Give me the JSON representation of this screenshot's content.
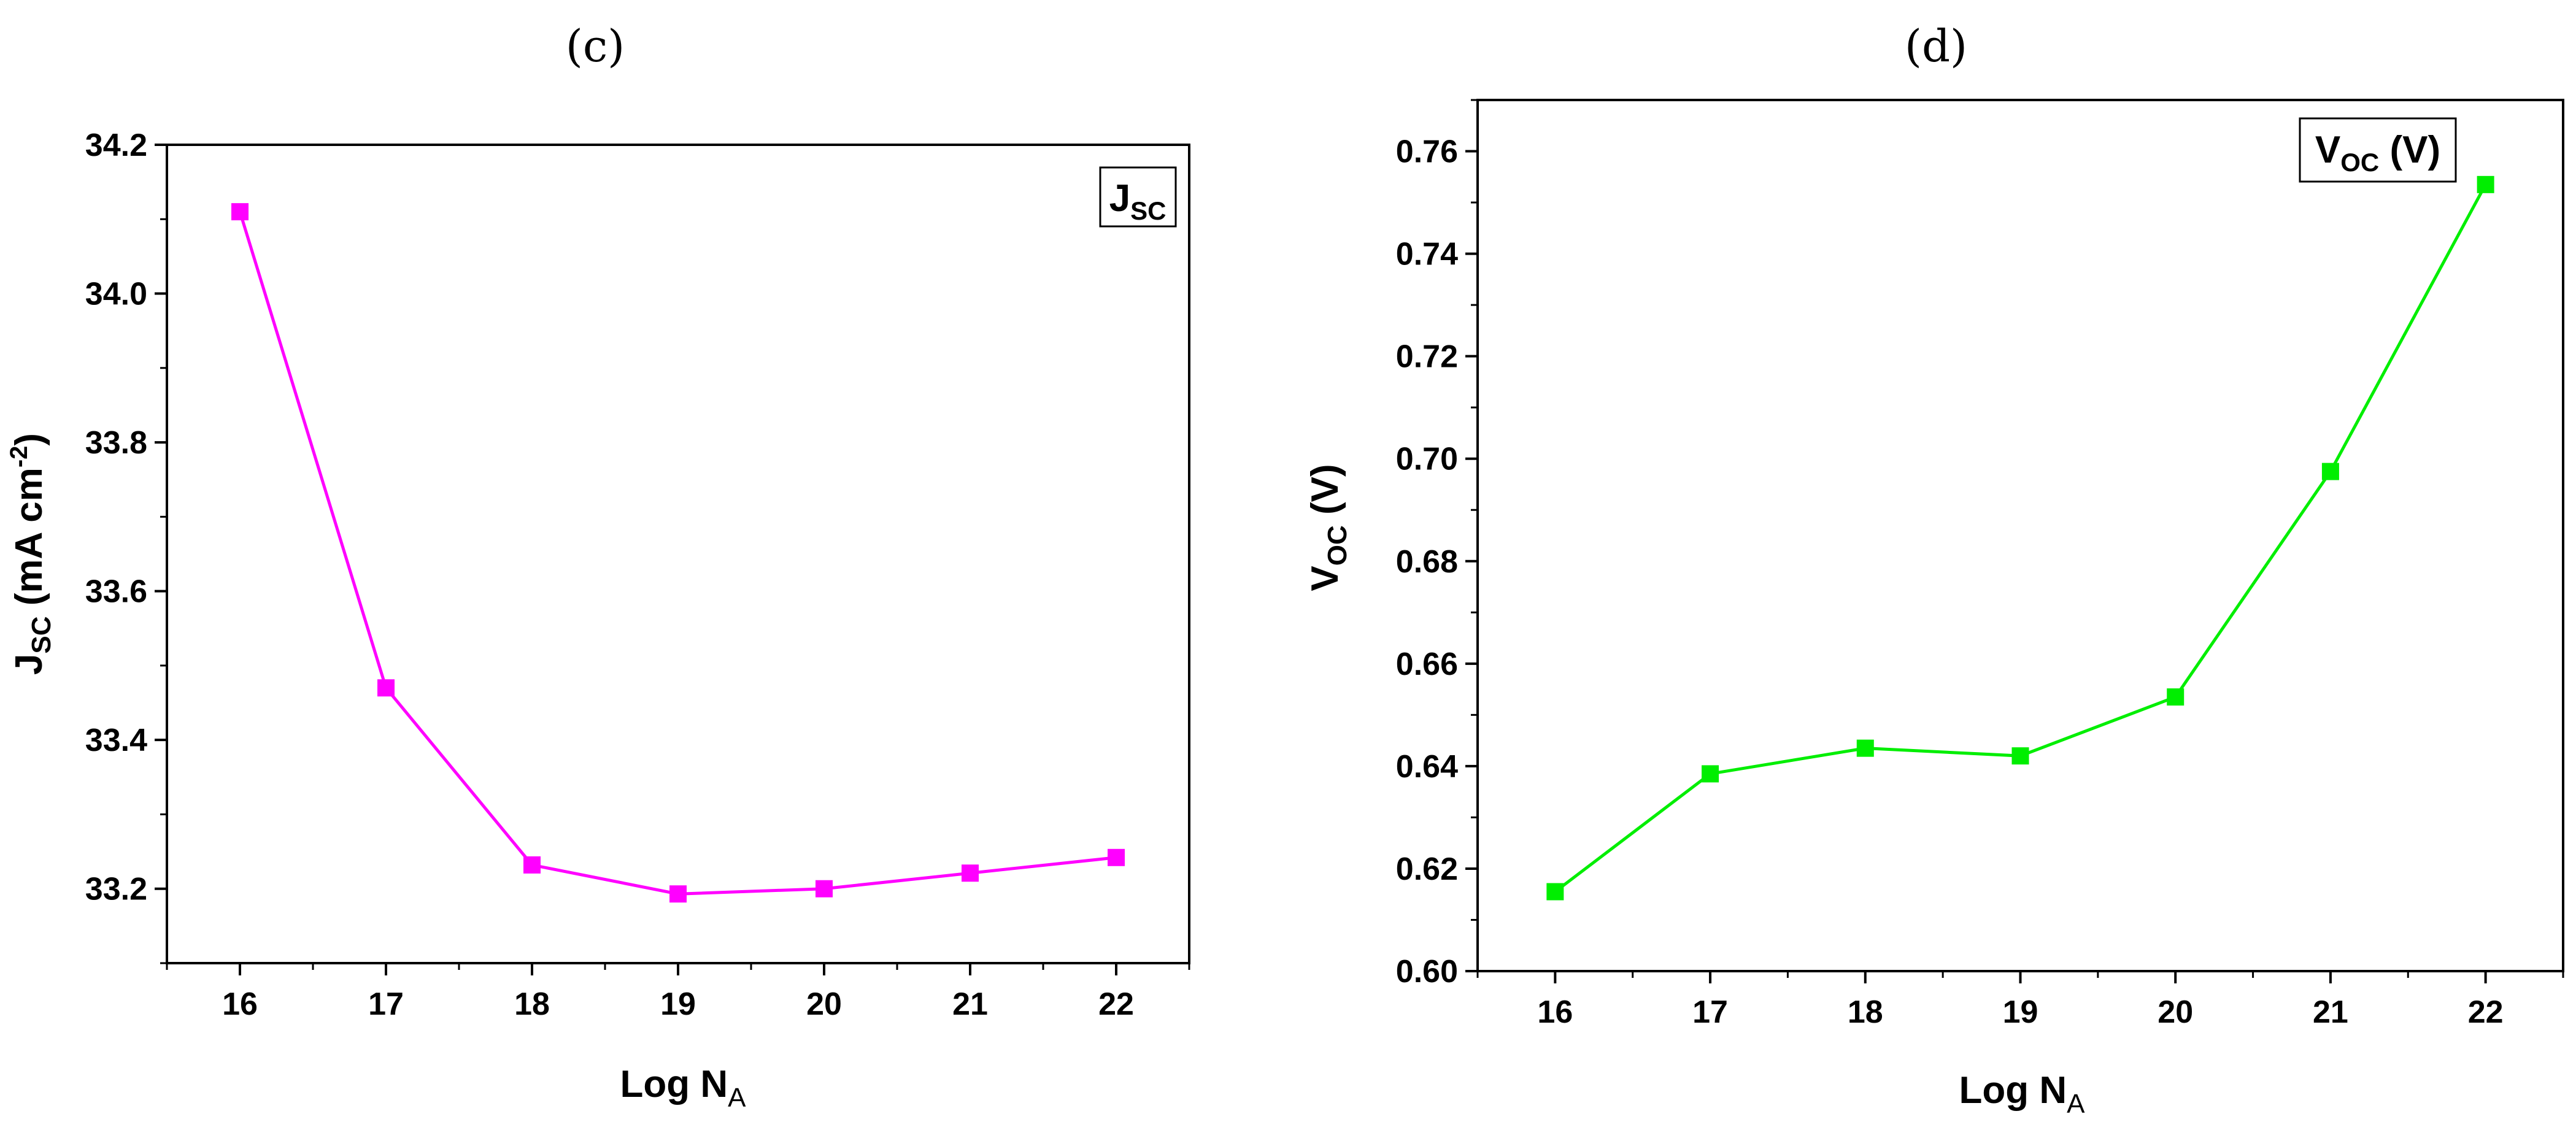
{
  "chart_data": [
    {
      "type": "line",
      "panel_label": "(c)",
      "x": [
        16,
        17,
        18,
        19,
        20,
        21,
        22
      ],
      "series": [
        {
          "values": [
            34.11,
            33.47,
            33.232,
            33.193,
            33.2,
            33.221,
            33.242
          ]
        }
      ],
      "xticks": [
        "16",
        "17",
        "18",
        "19",
        "20",
        "21",
        "22"
      ],
      "yticks": [
        "33.2",
        "33.4",
        "33.6",
        "33.8",
        "34.0",
        "34.2"
      ],
      "xlim": [
        15.5,
        22.5
      ],
      "ylim": [
        33.1,
        34.2
      ],
      "xlabel": {
        "main": "Log N",
        "sub": "A"
      },
      "ylabel": {
        "main": "J",
        "sub": "SC",
        "rest": " (mA cm",
        "sup": "-2",
        "end": ")"
      },
      "legend": {
        "main": "J",
        "sub": "SC"
      },
      "legend_position": "top-right",
      "color": "#ff00ff",
      "marker": "square",
      "grid": false
    },
    {
      "type": "line",
      "panel_label": "(d)",
      "x": [
        16,
        17,
        18,
        19,
        20,
        21,
        22
      ],
      "series": [
        {
          "values": [
            0.6155,
            0.6385,
            0.6435,
            0.642,
            0.6535,
            0.6975,
            0.7535
          ]
        }
      ],
      "xticks": [
        "16",
        "17",
        "18",
        "19",
        "20",
        "21",
        "22"
      ],
      "yticks": [
        "0.60",
        "0.62",
        "0.64",
        "0.66",
        "0.68",
        "0.70",
        "0.72",
        "0.74",
        "0.76"
      ],
      "xlim": [
        15.5,
        22.5
      ],
      "ylim": [
        0.6,
        0.77
      ],
      "xlabel": {
        "main": "Log N",
        "sub": "A"
      },
      "ylabel": {
        "main": "V",
        "sub": "OC",
        "rest": " (V)"
      },
      "legend": {
        "main": "V",
        "sub": "OC",
        "rest": " (V)"
      },
      "legend_position": "top-right",
      "color": "#00ee00",
      "marker": "square",
      "grid": false
    }
  ]
}
